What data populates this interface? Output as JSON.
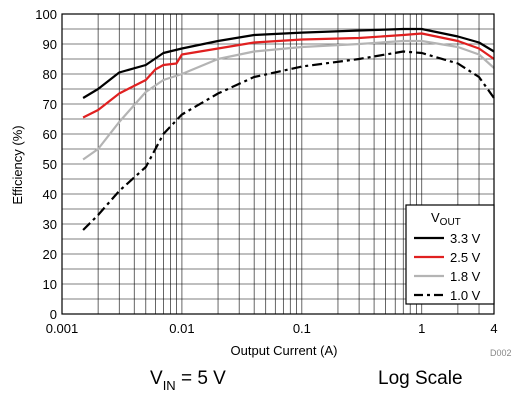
{
  "chart_data": {
    "type": "line",
    "xscale": "log",
    "xlim": [
      0.001,
      4
    ],
    "ylim": [
      0,
      100
    ],
    "xlabel": "Output Current (A)",
    "ylabel": "Efficiency (%)",
    "x_ticks": [
      0.001,
      0.01,
      0.1,
      1,
      4
    ],
    "x_tick_labels": [
      "0.001",
      "0.01",
      "0.1",
      "1",
      "4"
    ],
    "y_ticks": [
      0,
      10,
      20,
      30,
      40,
      50,
      60,
      70,
      80,
      90,
      100
    ],
    "y_tick_labels": [
      "0",
      "10",
      "20",
      "30",
      "40",
      "50",
      "60",
      "70",
      "80",
      "90",
      "100"
    ],
    "grid": true,
    "legend_position": "bottom-right",
    "legend_title": {
      "main": "V",
      "sub": "OUT"
    },
    "series": [
      {
        "name": "3.3 V",
        "color": "#000000",
        "dash": "solid",
        "points": [
          [
            0.0015,
            72
          ],
          [
            0.002,
            75
          ],
          [
            0.003,
            80.5
          ],
          [
            0.005,
            83
          ],
          [
            0.007,
            87
          ],
          [
            0.01,
            88.5
          ],
          [
            0.02,
            91
          ],
          [
            0.04,
            93
          ],
          [
            0.1,
            93.8
          ],
          [
            0.3,
            94.5
          ],
          [
            0.7,
            95
          ],
          [
            1,
            95
          ],
          [
            2,
            92.5
          ],
          [
            3,
            90.5
          ],
          [
            4,
            87.5
          ]
        ]
      },
      {
        "name": "2.5 V",
        "color": "#e02020",
        "dash": "solid",
        "points": [
          [
            0.0015,
            65.5
          ],
          [
            0.002,
            68
          ],
          [
            0.003,
            73.5
          ],
          [
            0.005,
            78
          ],
          [
            0.006,
            81.5
          ],
          [
            0.007,
            83
          ],
          [
            0.009,
            83.5
          ],
          [
            0.01,
            86.5
          ],
          [
            0.02,
            88.5
          ],
          [
            0.04,
            90.5
          ],
          [
            0.1,
            91.5
          ],
          [
            0.3,
            92
          ],
          [
            0.7,
            93
          ],
          [
            1,
            93.5
          ],
          [
            2,
            91
          ],
          [
            3,
            88.5
          ],
          [
            4,
            85
          ]
        ]
      },
      {
        "name": "1.8 V",
        "color": "#b4b4b4",
        "dash": "solid",
        "points": [
          [
            0.0015,
            51.5
          ],
          [
            0.002,
            55
          ],
          [
            0.003,
            64
          ],
          [
            0.005,
            74
          ],
          [
            0.007,
            78
          ],
          [
            0.01,
            80
          ],
          [
            0.02,
            85
          ],
          [
            0.04,
            87.5
          ],
          [
            0.1,
            89
          ],
          [
            0.3,
            90
          ],
          [
            0.7,
            91
          ],
          [
            1,
            91
          ],
          [
            2,
            89
          ],
          [
            3,
            86.5
          ],
          [
            4,
            82
          ]
        ]
      },
      {
        "name": "1.0 V",
        "color": "#000000",
        "dash": "dashdot",
        "points": [
          [
            0.0015,
            28
          ],
          [
            0.002,
            33
          ],
          [
            0.003,
            41
          ],
          [
            0.005,
            49
          ],
          [
            0.007,
            60
          ],
          [
            0.01,
            66.5
          ],
          [
            0.02,
            73.5
          ],
          [
            0.04,
            79
          ],
          [
            0.1,
            82.5
          ],
          [
            0.3,
            85
          ],
          [
            0.7,
            87.5
          ],
          [
            1,
            87
          ],
          [
            2,
            83.5
          ],
          [
            3,
            79
          ],
          [
            4,
            72
          ]
        ]
      }
    ]
  },
  "captions": {
    "vin_main": "V",
    "vin_sub": "IN",
    "vin_rest": " = 5 V",
    "scale": "Log Scale"
  },
  "figure_id": "D002"
}
